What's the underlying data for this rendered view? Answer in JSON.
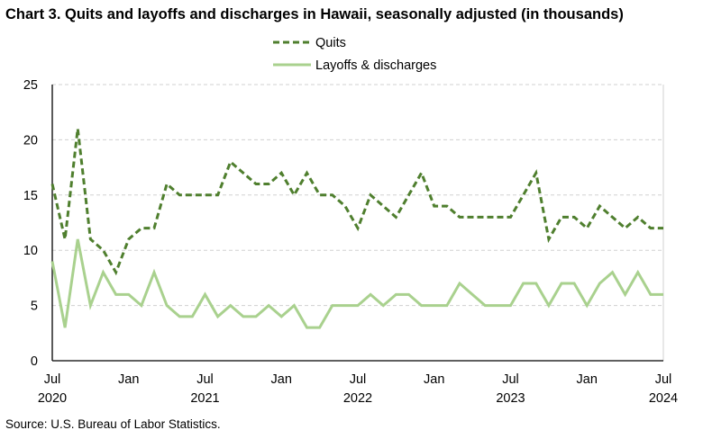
{
  "chart_data": {
    "type": "line",
    "title": "Chart 3. Quits and layoffs and discharges in Hawaii, seasonally adjusted (in thousands)",
    "source": "Source: U.S. Bureau of Labor Statistics.",
    "xlabel": "",
    "ylabel": "",
    "ylim": [
      0,
      25
    ],
    "yticks": [
      "0",
      "5",
      "10",
      "15",
      "20",
      "25"
    ],
    "x_start": "Jul 2020",
    "x_end": "Jul 2024",
    "xticks": [
      {
        "month": 0,
        "label": "Jul",
        "year": "2020"
      },
      {
        "month": 6,
        "label": "Jan",
        "year": ""
      },
      {
        "month": 12,
        "label": "Jul",
        "year": "2021"
      },
      {
        "month": 18,
        "label": "Jan",
        "year": ""
      },
      {
        "month": 24,
        "label": "Jul",
        "year": "2022"
      },
      {
        "month": 30,
        "label": "Jan",
        "year": ""
      },
      {
        "month": 36,
        "label": "Jul",
        "year": "2023"
      },
      {
        "month": 42,
        "label": "Jan",
        "year": ""
      },
      {
        "month": 48,
        "label": "Jul",
        "year": "2024"
      }
    ],
    "grid": true,
    "legend_placement": "top-center",
    "series": [
      {
        "name": "Quits",
        "color": "#4f7f2e",
        "style": "dashed",
        "values": [
          16,
          11,
          21,
          11,
          10,
          8,
          11,
          12,
          12,
          16,
          15,
          15,
          15,
          15,
          18,
          17,
          16,
          16,
          17,
          15,
          17,
          15,
          15,
          14,
          12,
          15,
          14,
          13,
          15,
          17,
          14,
          14,
          13,
          13,
          13,
          13,
          13,
          15,
          17,
          11,
          13,
          13,
          12,
          14,
          13,
          12,
          13,
          12,
          12
        ]
      },
      {
        "name": "Layoffs & discharges",
        "color": "#a9d18e",
        "style": "solid",
        "values": [
          9,
          3,
          11,
          5,
          8,
          6,
          6,
          5,
          8,
          5,
          4,
          4,
          6,
          4,
          5,
          4,
          4,
          5,
          4,
          5,
          3,
          3,
          5,
          5,
          5,
          6,
          5,
          6,
          6,
          5,
          5,
          5,
          7,
          6,
          5,
          5,
          5,
          7,
          7,
          5,
          7,
          7,
          5,
          7,
          8,
          6,
          8,
          6,
          6
        ]
      }
    ]
  }
}
